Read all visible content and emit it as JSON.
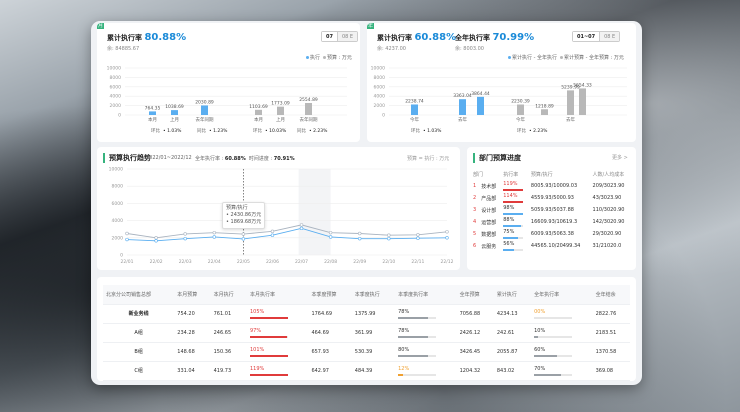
{
  "colors": {
    "accent": "#1a8ad8",
    "green": "#36b37e",
    "red": "#e03b3b",
    "orange": "#f0a030",
    "bar_blue": "#5aaef0",
    "bar_gray": "#b8b8b8"
  },
  "card1": {
    "corner": "月",
    "title": "累计执行率",
    "pct": "80.88%",
    "sub": "余: 84885.67",
    "seg_on": "07",
    "seg_off": "08 E",
    "legend": [
      "执行",
      "预算 : 万元"
    ],
    "yticks": [
      "10000",
      "8000",
      "6000",
      "4000",
      "2000",
      "0"
    ],
    "groups": [
      {
        "bars": [
          {
            "label": "本月",
            "value": "764.35",
            "color": "blue"
          },
          {
            "label": "上月",
            "value": "1038.69",
            "color": "blue"
          },
          {
            "label": "去年同期",
            "value": "2030.89",
            "color": "blue"
          }
        ],
        "foot": "环比",
        "change": "1.03%"
      },
      {
        "bars": [
          {
            "label": "本月",
            "value": "1103.69",
            "color": "gray"
          },
          {
            "label": "上月",
            "value": "1773.09",
            "color": "gray"
          },
          {
            "label": "去年同期",
            "value": "2554.89",
            "color": "gray"
          }
        ],
        "foot": "环比",
        "change": "10.03%"
      }
    ],
    "foot_extra": [
      "同比",
      "1.23%",
      "同比",
      "2.23%"
    ]
  },
  "card2": {
    "corner": "年",
    "title1": "累计执行率",
    "pct1": "60.88%",
    "title2": "全年执行率",
    "pct2": "70.99%",
    "sub": "余: 4237.00",
    "sub2": "余: 8003.00",
    "seg_on": "01~07",
    "seg_off": "08 E",
    "legend": [
      "累计执行 - 全年执行",
      "累计预算 - 全年预算 : 万元"
    ],
    "yticks": [
      "10000",
      "8000",
      "6000",
      "4000",
      "2000",
      "0"
    ],
    "groups": [
      {
        "bars": [
          {
            "label": "今年",
            "value": "2238.74",
            "color": "blue"
          },
          {
            "label": "去年",
            "value": "3363.04",
            "color": "blue"
          },
          {
            "label": "",
            "value": "3864.44",
            "color": "blue"
          }
        ],
        "foot": "环比",
        "change": "1.03%"
      },
      {
        "bars": [
          {
            "label": "今年",
            "value": "2230.39",
            "color": "gray"
          },
          {
            "label": "",
            "value": "1218.89",
            "color": "gray"
          },
          {
            "label": "去年",
            "value": "5239.99",
            "color": "gray"
          },
          {
            "label": "",
            "value": "5654.33",
            "color": "gray"
          }
        ],
        "foot": "环比",
        "change": "2.23%"
      }
    ]
  },
  "trend": {
    "title": "预算执行趋势",
    "range": "2022/01~2022/12",
    "yearly_label": "全年执行率 :",
    "yearly": "60.88%",
    "progress_label": "时间进度 :",
    "progress": "70.91%",
    "legend": "预算 = 执行 : 万元",
    "yticks": [
      "10000",
      "8000",
      "6000",
      "4000",
      "2000",
      "0"
    ],
    "tooltip": {
      "title": "预算/执行",
      "budget": "• 2430.86万元",
      "exec": "• 1869.68万元"
    }
  },
  "chart_data": {
    "type": "line",
    "title": "预算执行趋势",
    "categories": [
      "22/01",
      "22/02",
      "22/03",
      "22/04",
      "22/05",
      "22/06",
      "22/07",
      "22/08",
      "22/09",
      "22/10",
      "22/11",
      "22/12"
    ],
    "ylim": [
      0,
      10000
    ],
    "series": [
      {
        "name": "预算",
        "values": [
          2500,
          2000,
          2450,
          2600,
          2430,
          2750,
          3500,
          2600,
          2500,
          2300,
          2350,
          2700
        ]
      },
      {
        "name": "执行",
        "values": [
          1800,
          1650,
          1900,
          2100,
          1870,
          2300,
          3100,
          2100,
          1900,
          1900,
          1950,
          2000
        ]
      }
    ]
  },
  "dept": {
    "title": "部门预算进度",
    "more": "更多 >",
    "headers": [
      "部门",
      "执行率",
      "预算/执行",
      "人数/人均成本"
    ],
    "rows": [
      {
        "no": "1",
        "name": "技术部",
        "rate": "119%",
        "amount": "8005.93/10009.03",
        "people": "209/3023.90",
        "color": "red",
        "fill": 100
      },
      {
        "no": "2",
        "name": "产品部",
        "rate": "114%",
        "amount": "4559.93/5000.93",
        "people": "43/3023.90",
        "color": "red",
        "fill": 100
      },
      {
        "no": "3",
        "name": "设计部",
        "rate": "98%",
        "amount": "5059.93/5037.88",
        "people": "110/3020.90",
        "color": "blue",
        "fill": 98
      },
      {
        "no": "4",
        "name": "运营部",
        "rate": "88%",
        "amount": "16609.93/10619.3",
        "people": "142/3020.90",
        "color": "blue",
        "fill": 88
      },
      {
        "no": "5",
        "name": "数据部",
        "rate": "75%",
        "amount": "6009.93/5063.38",
        "people": "29/3020.90",
        "color": "blue",
        "fill": 75
      },
      {
        "no": "6",
        "name": "云服务",
        "rate": "56%",
        "amount": "44565.10/20499.34",
        "people": "31/21020.0",
        "color": "blue",
        "fill": 56
      }
    ]
  },
  "table": {
    "headers": [
      "北京分公司销售总部",
      "本月预算",
      "本月执行",
      "本月执行率",
      "本季度预算",
      "本季度执行",
      "本季度执行率",
      "全年预算",
      "累计执行",
      "全年执行率",
      "全年结余"
    ],
    "rows": [
      {
        "name": "新业务线",
        "cells": [
          "754.20",
          "761.01",
          "105%",
          "1764.69",
          "1375.99",
          "78%",
          "7056.88",
          "4234.13",
          "00%",
          "2822.76"
        ],
        "c1": "red",
        "f1": 100,
        "c2": "gray",
        "f2": 78,
        "c3": "orange",
        "f3": 0
      },
      {
        "name": "A组",
        "cells": [
          "234.28",
          "246.65",
          "97%",
          "464.69",
          "361.99",
          "78%",
          "2426.12",
          "242.61",
          "10%",
          "2183.51"
        ],
        "c1": "red",
        "f1": 97,
        "c2": "gray",
        "f2": 78,
        "c3": "gray",
        "f3": 10
      },
      {
        "name": "B组",
        "cells": [
          "148.68",
          "150.36",
          "101%",
          "657.93",
          "530.39",
          "80%",
          "3426.45",
          "2055.87",
          "60%",
          "1370.58"
        ],
        "c1": "red",
        "f1": 100,
        "c2": "gray",
        "f2": 80,
        "c3": "gray",
        "f3": 60
      },
      {
        "name": "C组",
        "cells": [
          "331.04",
          "419.73",
          "119%",
          "642.97",
          "484.39",
          "12%",
          "1204.32",
          "843.02",
          "70%",
          "369.08"
        ],
        "c1": "red",
        "f1": 100,
        "c2": "orange",
        "f2": 12,
        "c3": "gray",
        "f3": 70
      }
    ]
  }
}
